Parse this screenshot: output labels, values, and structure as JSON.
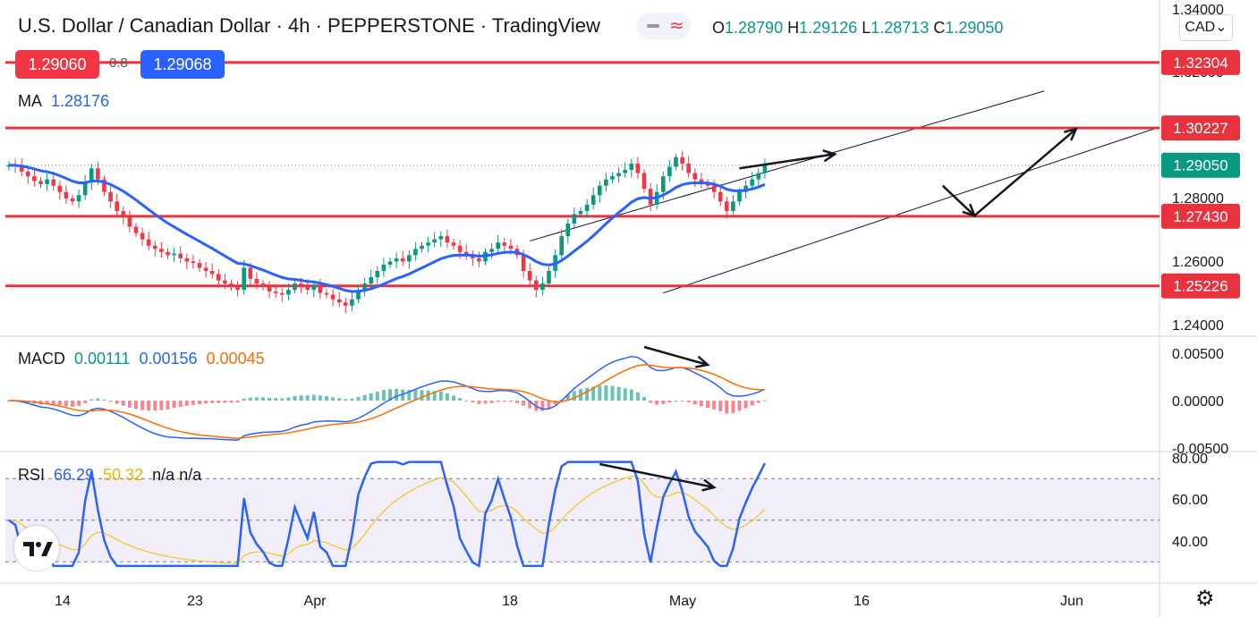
{
  "header": {
    "symbol_title": "U.S. Dollar / Canadian Dollar · 4h · PEPPERSTONE · TradingView",
    "ohlc": {
      "o_label": "O",
      "o": "1.28790",
      "h_label": "H",
      "h": "1.29126",
      "l_label": "L",
      "l": "1.28713",
      "c_label": "C",
      "c": "1.29050"
    },
    "sell_price": "1.29060",
    "spread": "0.8",
    "buy_price": "1.29068",
    "ma_label": "MA",
    "ma_value": "1.28176",
    "currency_button": "CAD",
    "currency_chevron": "⌄"
  },
  "indicators": {
    "macd": {
      "label": "MACD",
      "v1": "0.00111",
      "v2": "0.00156",
      "v3": "0.00045"
    },
    "rsi": {
      "label": "RSI",
      "v1": "66.29",
      "v2": "50.32",
      "v3": "n/a",
      "v4": "n/a"
    }
  },
  "colors": {
    "up": "#089981",
    "down": "#f23645",
    "ma": "#2962ff",
    "level": "#e8333f",
    "macd_line": "#2962ff",
    "signal_line": "#ff6d00",
    "rsi_line": "#2962ff",
    "rsi_ma": "#f5c518",
    "rsi_band": "#7e57c2",
    "channel": "#131722",
    "arrow": "#131722"
  },
  "chart_data": {
    "type": "line",
    "subtype": "candlestick",
    "price_axis": {
      "range": [
        1.235,
        1.3425
      ],
      "ticks": [
        "1.34000",
        "1.32000",
        "1.30000",
        "1.28000",
        "1.26000",
        "1.24000"
      ]
    },
    "time_axis": {
      "ticks": [
        "14",
        "23",
        "Apr",
        "18",
        "May",
        "16",
        "Jun"
      ]
    },
    "horizontal_levels": [
      {
        "value": 1.32304,
        "label": "1.32304"
      },
      {
        "value": 1.30227,
        "label": "1.30227"
      },
      {
        "value": 1.2743,
        "label": "1.27430"
      },
      {
        "value": 1.25226,
        "label": "1.25226"
      }
    ],
    "last_price": {
      "value": 1.2905,
      "label": "1.29050"
    },
    "bar_count": 120,
    "close_series": [
      1.2905,
      1.2902,
      1.2885,
      1.287,
      1.2855,
      1.2845,
      1.286,
      1.284,
      1.282,
      1.28,
      1.279,
      1.281,
      1.285,
      1.2895,
      1.286,
      1.282,
      1.279,
      1.276,
      1.274,
      1.271,
      1.269,
      1.267,
      1.265,
      1.264,
      1.263,
      1.262,
      1.2625,
      1.261,
      1.26,
      1.2595,
      1.258,
      1.257,
      1.256,
      1.254,
      1.253,
      1.252,
      1.251,
      1.258,
      1.2545,
      1.253,
      1.252,
      1.2505,
      1.25,
      1.2495,
      1.251,
      1.253,
      1.252,
      1.251,
      1.2525,
      1.25,
      1.2495,
      1.248,
      1.247,
      1.246,
      1.248,
      1.251,
      1.253,
      1.255,
      1.257,
      1.259,
      1.26,
      1.261,
      1.26,
      1.262,
      1.264,
      1.265,
      1.266,
      1.267,
      1.268,
      1.266,
      1.265,
      1.263,
      1.262,
      1.261,
      1.26,
      1.263,
      1.264,
      1.266,
      1.265,
      1.264,
      1.262,
      1.257,
      1.254,
      1.251,
      1.253,
      1.257,
      1.262,
      1.268,
      1.272,
      1.275,
      1.276,
      1.278,
      1.281,
      1.284,
      1.286,
      1.287,
      1.288,
      1.289,
      1.291,
      1.288,
      1.283,
      1.278,
      1.282,
      1.287,
      1.29,
      1.293,
      1.291,
      1.288,
      1.286,
      1.285,
      1.284,
      1.282,
      1.279,
      1.276,
      1.279,
      1.282,
      1.284,
      1.286,
      1.288,
      1.2905
    ],
    "ma_series_note": "smoothed moving average of close",
    "channel_lines": [
      {
        "name": "upper",
        "from": {
          "bar": 82,
          "price": 1.2665
        },
        "to": {
          "bar": 163,
          "price": 1.314
        }
      },
      {
        "name": "lower",
        "from": {
          "bar": 103,
          "price": 1.25
        },
        "to": {
          "bar": 181,
          "price": 1.3025
        }
      }
    ],
    "arrows": [
      {
        "from": {
          "bar": 115,
          "price": 1.2895
        },
        "to": {
          "bar": 130,
          "price": 1.294
        }
      },
      {
        "from": {
          "bar": 147,
          "price": 1.284
        },
        "to": {
          "bar": 152,
          "price": 1.2745
        }
      },
      {
        "from": {
          "bar": 152,
          "price": 1.2745
        },
        "to": {
          "bar": 168,
          "price": 1.302
        }
      }
    ],
    "macd": {
      "range": [
        -0.0058,
        0.0062
      ],
      "ticks": [
        "0.00500",
        "0.00000",
        "-0.00500"
      ]
    },
    "rsi": {
      "range": [
        26,
        82
      ],
      "ticks": [
        "80.00",
        "60.00",
        "40.00"
      ],
      "band": [
        30,
        70
      ],
      "mid": 50
    }
  }
}
